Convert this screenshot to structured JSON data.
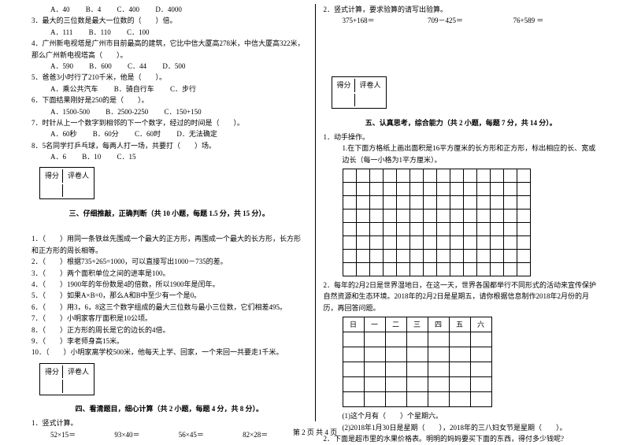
{
  "left": {
    "q2opts": {
      "a": "A．40",
      "b": "B．4",
      "c": "C．400",
      "d": "D．4000"
    },
    "q3": "3．最大的三位数是最大一位数的（　　）倍。",
    "q3opts": {
      "a": "A．111",
      "b": "B．110",
      "c": "C．100"
    },
    "q4": "4．广州新电视塔是广州市目前最高的建筑，它比中信大厦高278米，中信大厦高322米，那么广州新电视塔高（　　）。",
    "q4opts": {
      "a": "A．590",
      "b": "B．600",
      "c": "C．44",
      "d": "D．500"
    },
    "q5": "5．爸爸3小时行了210千米，他是（　　）。",
    "q5opts": {
      "a": "A．乘公共汽车",
      "b": "B．骑自行车",
      "c": "C．步行"
    },
    "q6": "6．下面结果刚好是250的是（　　）。",
    "q6opts": {
      "a": "A．1500-500",
      "b": "B．2500-2250",
      "c": "C．150+150"
    },
    "q7": "7．时针从上一个数字到相邻的下一个数字，经过的时间是（　　）。",
    "q7opts": {
      "a": "A．60秒",
      "b": "B．60分",
      "c": "C．60时",
      "d": "D．无法确定"
    },
    "q8": "8．5名同学打乒乓球，每两人打一场，共要打（　　）场。",
    "q8opts": {
      "a": "A．6",
      "b": "B．10",
      "c": "C．15"
    },
    "scoreLabels": {
      "a": "得分",
      "b": "评卷人"
    },
    "sec3": "三、仔细推敲，正确判断（共 10 小题，每题 1.5 分，共 15 分）。",
    "j1": "1．（　　）用同一条铁丝先围成一个最大的正方形，再围成一个最大的长方形，长方形和正方形的周长相等。",
    "j2": "2．（　　）根据735+265=1000，可以直接写出1000－735的差。",
    "j3": "3．（　　）两个面积单位之间的进率是100。",
    "j4": "4．（　　）1900年的年份数是4的倍数，所以1900年是闰年。",
    "j5": "5．（　　）如果A×B=0，那么A和B中至少有一个是0。",
    "j6": "6．（　　）用3，6，8这三个数字组成的最大三位数与最小三位数，它们相差495。",
    "j7": "7．（　　）小明家客厅面积是10公顷。",
    "j8": "8．（　　）正方形的周长是它的边长的4倍。",
    "j9": "9．（　　）李老师身高15米。",
    "j10": "10．（　　）小明家离学校500米，他每天上学、回家，一个来回一共要走1千米。",
    "sec4": "四、看清题目，细心计算（共 2 小题，每题 4 分，共 8 分）。",
    "c1": "1．竖式计算。",
    "c1a": "52×15＝",
    "c1b": "93×40＝",
    "c1c": "56×45＝",
    "c1d": "82×28＝"
  },
  "right": {
    "c2": "2．竖式计算，要求验算的请写出验算。",
    "c2a": "375+168＝",
    "c2b": "709－425＝",
    "c2c": "76+589 ＝",
    "sec5": "五、认真思考，综合能力（共 2 小题，每题 7 分，共 14 分）。",
    "p1": "1．动手操作。",
    "p1a": "1.在下面方格纸上画出面积是16平方厘米的长方形和正方形，标出相应的长、宽或边长（每一小格为1平方厘米）。",
    "p2": "2．每年的2月2日是世界湿地日，在这一天，世界各国都举行不同形式的活动来宣传保护自然资源和生态环境。2018年的2月2日是星期五，请你根据信息制作2018年2月份的月历，再回答问题。",
    "cal": {
      "d0": "日",
      "d1": "一",
      "d2": "二",
      "d3": "三",
      "d4": "四",
      "d5": "五",
      "d6": "六"
    },
    "p2a": "(1)这个月有（　　）个星期六。",
    "p2b": "(2)2018年1月30日是星期（　　），2018年的三八妇女节是星期（　　）。",
    "p3": "2．下面是超市里的水果价格表。明明的妈妈要买下面的东西，得付多少钱呢?"
  },
  "footer": "第 2 页 共 4 页"
}
